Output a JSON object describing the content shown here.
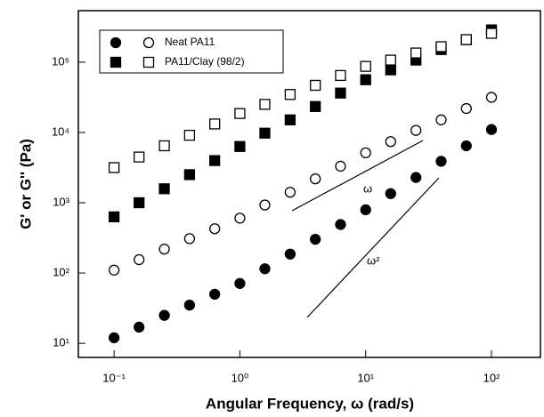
{
  "chart_data": {
    "type": "scatter",
    "x_label": "Angular Frequency, ω (rad/s)",
    "y_label": "G' or G'' (Pa)",
    "x": [
      0.1,
      0.158,
      0.251,
      0.398,
      0.631,
      1,
      1.58,
      2.51,
      3.98,
      6.31,
      10,
      15.8,
      25.1,
      39.8,
      63.1,
      100
    ],
    "series": [
      {
        "name": "Neat PA11",
        "marker": "circle",
        "color": "#000000",
        "storage": [
          12,
          17,
          25,
          35,
          50,
          71,
          115,
          186,
          302,
          490,
          794,
          1350,
          2290,
          3890,
          6460,
          11000
        ],
        "loss": [
          110,
          155,
          219,
          309,
          427,
          603,
          930,
          1410,
          2190,
          3310,
          5130,
          7410,
          10700,
          15100,
          21900,
          31600
        ]
      },
      {
        "name": "PA11/Clay (98/2)",
        "marker": "square",
        "color": "#000000",
        "storage": [
          630,
          1000,
          1580,
          2510,
          3980,
          6310,
          9770,
          15100,
          23400,
          36300,
          56200,
          77600,
          107000,
          151000,
          209000,
          288000
        ],
        "loss": [
          3160,
          4470,
          6460,
          9120,
          13200,
          18600,
          25100,
          34700,
          46800,
          64600,
          87100,
          107000,
          135000,
          166000,
          209000,
          257000
        ]
      }
    ],
    "annotations": [
      "ω",
      "ω²"
    ],
    "xscale": "log",
    "yscale": "log",
    "xlim": [
      0.052,
      245
    ],
    "ylim": [
      6.3,
      540000
    ],
    "xticks": [
      {
        "value": 0.1,
        "label": "10⁻¹"
      },
      {
        "value": 1,
        "label": "10⁰"
      },
      {
        "value": 10,
        "label": "10¹"
      },
      {
        "value": 100,
        "label": "10²"
      }
    ],
    "yticks": [
      {
        "value": 10,
        "label": "10¹"
      },
      {
        "value": 100,
        "label": "10²"
      },
      {
        "value": 1000,
        "label": "10³"
      },
      {
        "value": 10000,
        "label": "10⁴"
      },
      {
        "value": 100000,
        "label": "10⁵"
      }
    ],
    "legend": "upper left"
  }
}
